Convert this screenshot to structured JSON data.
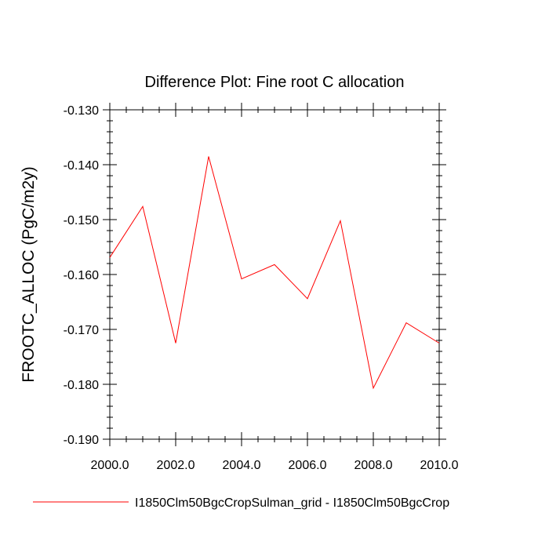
{
  "chart_data": {
    "type": "line",
    "title": "Difference Plot: Fine root C allocation",
    "xlabel": "",
    "ylabel": "FROOTC_ALLOC  (PgC/m2y)",
    "xlim": [
      2000,
      2010
    ],
    "ylim": [
      -0.19,
      -0.13
    ],
    "xticks": [
      "2000.0",
      "2002.0",
      "2004.0",
      "2006.0",
      "2008.0",
      "2010.0"
    ],
    "yticks": [
      "-0.130",
      "-0.140",
      "-0.150",
      "-0.160",
      "-0.170",
      "-0.180",
      "-0.190"
    ],
    "grid": false,
    "legend_position": "bottom",
    "series": [
      {
        "name": "I1850Clm50BgcCropSulman_grid - I1850Clm50BgcCrop",
        "color": "#ff0000",
        "x": [
          2000,
          2001,
          2002,
          2003,
          2004,
          2005,
          2006,
          2007,
          2008,
          2009,
          2010
        ],
        "y": [
          -0.1569,
          -0.1476,
          -0.1725,
          -0.1385,
          -0.1608,
          -0.1582,
          -0.1644,
          -0.1502,
          -0.1807,
          -0.1688,
          -0.1725
        ]
      }
    ]
  }
}
